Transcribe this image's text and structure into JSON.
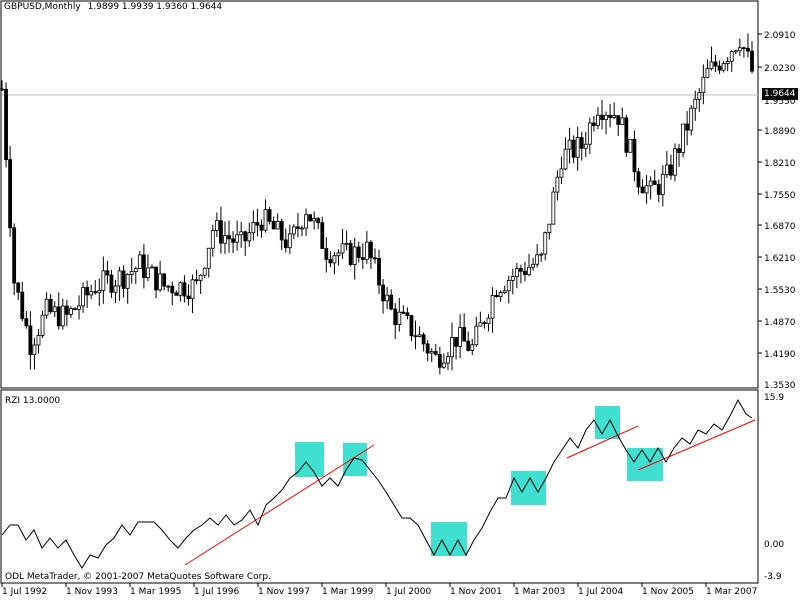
{
  "header": {
    "symbol": "GBPUSD,Monthly",
    "ohlc": "1.9899 1.9939 1.9360 1.9644"
  },
  "indicator": {
    "name": "RZI 13.0000",
    "copyright": "ODL MetaTrader, © 2001-2007 MetaQuotes Software Corp."
  },
  "current_price_label": "1.9644",
  "colors": {
    "box": "#40e0d0",
    "trend": "#ff0000",
    "line": "#000000",
    "grid": "#c0c0c0"
  },
  "chart_data": [
    {
      "type": "candlestick",
      "title": "GBPUSD,Monthly",
      "ylim": [
        1.353,
        2.098
      ],
      "y_ticks": [
        "2.0910",
        "2.0230",
        "1.9550",
        "1.8890",
        "1.8210",
        "1.7550",
        "1.6870",
        "1.6210",
        "1.5530",
        "1.4870",
        "1.4190",
        "1.3530"
      ],
      "x_ticks": [
        "1 Jul 1992",
        "1 Nov 1993",
        "1 Mar 1995",
        "1 Jul 1996",
        "1 Nov 1997",
        "1 Mar 1999",
        "1 Jul 2000",
        "1 Nov 2001",
        "1 Mar 2003",
        "1 Jul 2004",
        "1 Nov 2005",
        "1 Mar 2007"
      ],
      "approx_close_path": [
        {
          "x": "1992-07",
          "y": 1.93
        },
        {
          "x": "1992-10",
          "y": 1.56
        },
        {
          "x": "1993-02",
          "y": 1.44
        },
        {
          "x": "1993-06",
          "y": 1.5
        },
        {
          "x": "1993-11",
          "y": 1.49
        },
        {
          "x": "1994-06",
          "y": 1.55
        },
        {
          "x": "1995-01",
          "y": 1.57
        },
        {
          "x": "1995-05",
          "y": 1.59
        },
        {
          "x": "1995-11",
          "y": 1.55
        },
        {
          "x": "1996-07",
          "y": 1.55
        },
        {
          "x": "1996-11",
          "y": 1.66
        },
        {
          "x": "1997-06",
          "y": 1.63
        },
        {
          "x": "1997-11",
          "y": 1.68
        },
        {
          "x": "1998-06",
          "y": 1.63
        },
        {
          "x": "1998-10",
          "y": 1.7
        },
        {
          "x": "1999-03",
          "y": 1.62
        },
        {
          "x": "1999-08",
          "y": 1.61
        },
        {
          "x": "2000-01",
          "y": 1.62
        },
        {
          "x": "2000-07",
          "y": 1.5
        },
        {
          "x": "2001-01",
          "y": 1.46
        },
        {
          "x": "2001-06",
          "y": 1.41
        },
        {
          "x": "2001-11",
          "y": 1.45
        },
        {
          "x": "2002-03",
          "y": 1.43
        },
        {
          "x": "2002-09",
          "y": 1.55
        },
        {
          "x": "2003-03",
          "y": 1.58
        },
        {
          "x": "2003-08",
          "y": 1.6
        },
        {
          "x": "2004-01",
          "y": 1.8
        },
        {
          "x": "2004-06",
          "y": 1.82
        },
        {
          "x": "2004-10",
          "y": 1.9
        },
        {
          "x": "2005-03",
          "y": 1.88
        },
        {
          "x": "2005-08",
          "y": 1.76
        },
        {
          "x": "2005-11",
          "y": 1.73
        },
        {
          "x": "2006-03",
          "y": 1.76
        },
        {
          "x": "2006-09",
          "y": 1.88
        },
        {
          "x": "2007-01",
          "y": 1.96
        },
        {
          "x": "2007-06",
          "y": 2.0
        },
        {
          "x": "2007-09",
          "y": 2.03
        },
        {
          "x": "2007-12",
          "y": 1.9644
        }
      ]
    },
    {
      "type": "line",
      "title": "RZI 13.0000",
      "ylim": [
        -3.9,
        15.9
      ],
      "y_ticks": [
        "15.9",
        "0.00",
        "-3.9"
      ],
      "x_ticks": [
        "1 Jul 1992",
        "1 Nov 1993",
        "1 Mar 1995",
        "1 Jul 1996",
        "1 Nov 1997",
        "1 Mar 1999",
        "1 Jul 2000",
        "1 Nov 2001",
        "1 Mar 2003",
        "1 Jul 2004",
        "1 Nov 2005",
        "1 Mar 2007"
      ]
    }
  ]
}
